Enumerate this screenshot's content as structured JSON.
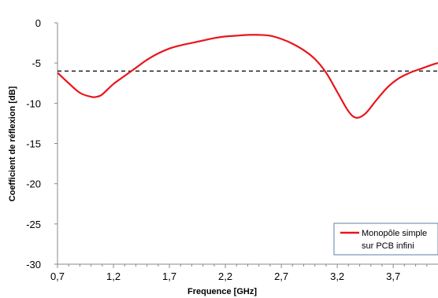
{
  "chart_data": {
    "type": "line",
    "xlabel": "Frequence [GHz]",
    "ylabel": "Coefficient de réflexion [dB]",
    "xlim": [
      0.7,
      4.1
    ],
    "ylim": [
      -30,
      0
    ],
    "xticks": [
      "0,7",
      "1,2",
      "1,7",
      "2,2",
      "2,7",
      "3,2",
      "3,7"
    ],
    "xtick_values": [
      0.7,
      1.2,
      1.7,
      2.2,
      2.7,
      3.2,
      3.7
    ],
    "yticks": [
      "0",
      "-5",
      "-10",
      "-15",
      "-20",
      "-25",
      "-30"
    ],
    "ytick_values": [
      0,
      -5,
      -10,
      -15,
      -20,
      -25,
      -30
    ],
    "grid": false,
    "legend_position": "bottom-right",
    "threshold": {
      "y": -6,
      "style": "dashed",
      "color": "#000000"
    },
    "series": [
      {
        "name": "Monopôle simple sur PCB infini",
        "legend_lines": [
          "Monopôle simple",
          "sur PCB infini"
        ],
        "color": "#e8161c",
        "x": [
          0.7,
          0.8,
          0.9,
          1.0,
          1.05,
          1.1,
          1.2,
          1.3,
          1.4,
          1.5,
          1.6,
          1.7,
          1.8,
          1.9,
          2.0,
          2.1,
          2.2,
          2.3,
          2.4,
          2.5,
          2.6,
          2.7,
          2.8,
          2.9,
          3.0,
          3.1,
          3.2,
          3.3,
          3.37,
          3.45,
          3.55,
          3.65,
          3.75,
          3.85,
          3.95,
          4.05,
          4.1
        ],
        "y": [
          -6.2,
          -7.5,
          -8.7,
          -9.2,
          -9.2,
          -8.9,
          -7.6,
          -6.6,
          -5.6,
          -4.6,
          -3.8,
          -3.2,
          -2.8,
          -2.5,
          -2.2,
          -1.9,
          -1.7,
          -1.6,
          -1.5,
          -1.5,
          -1.6,
          -2.0,
          -2.6,
          -3.4,
          -4.5,
          -6.2,
          -8.6,
          -11.0,
          -11.8,
          -11.3,
          -9.6,
          -8.0,
          -6.9,
          -6.2,
          -5.7,
          -5.2,
          -5.0
        ]
      }
    ]
  }
}
